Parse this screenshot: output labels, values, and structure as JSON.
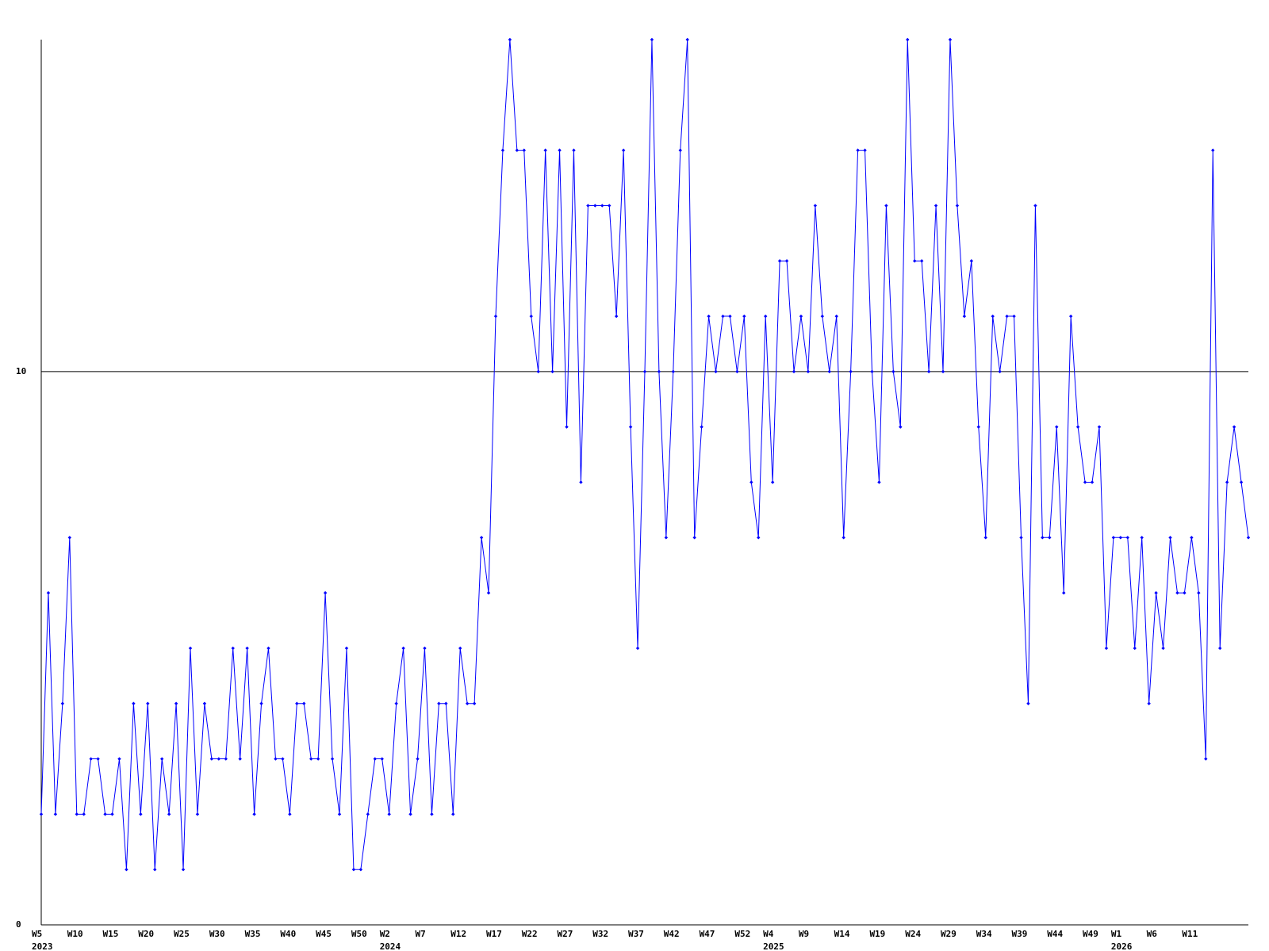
{
  "chart_data": {
    "type": "line",
    "categories": [
      "W5",
      null,
      null,
      null,
      null,
      "W10",
      null,
      null,
      null,
      null,
      "W15",
      null,
      null,
      null,
      null,
      "W20",
      null,
      null,
      null,
      null,
      "W25",
      null,
      null,
      null,
      null,
      "W30",
      null,
      null,
      null,
      null,
      "W35",
      null,
      null,
      null,
      null,
      "W40",
      null,
      null,
      null,
      null,
      "W45",
      null,
      null,
      null,
      null,
      "W50",
      null,
      null,
      null,
      "W2",
      null,
      null,
      null,
      null,
      "W7",
      null,
      null,
      null,
      null,
      "W12",
      null,
      null,
      null,
      null,
      "W17",
      null,
      null,
      null,
      null,
      "W22",
      null,
      null,
      null,
      null,
      "W27",
      null,
      null,
      null,
      null,
      "W32",
      null,
      null,
      null,
      null,
      "W37",
      null,
      null,
      null,
      null,
      "W42",
      null,
      null,
      null,
      null,
      "W47",
      null,
      null,
      null,
      null,
      "W52",
      null,
      null,
      null,
      "W4",
      null,
      null,
      null,
      null,
      "W9",
      null,
      null,
      null,
      null,
      "W14",
      null,
      null,
      null,
      null,
      "W19",
      null,
      null,
      null,
      null,
      "W24",
      null,
      null,
      null,
      null,
      "W29",
      null,
      null,
      null,
      null,
      "W34",
      null,
      null,
      null,
      null,
      "W39",
      null,
      null,
      null,
      null,
      "W44",
      null,
      null,
      null,
      null,
      "W49",
      null,
      null,
      null,
      "W1",
      null,
      null,
      null,
      null,
      "W6",
      null,
      null,
      null,
      null,
      "W11",
      null,
      null,
      null,
      null,
      null,
      null,
      null,
      null
    ],
    "years": [
      "2023",
      null,
      null,
      null,
      null,
      null,
      null,
      null,
      null,
      null,
      null,
      null,
      null,
      null,
      null,
      null,
      null,
      null,
      null,
      null,
      null,
      null,
      null,
      null,
      null,
      null,
      null,
      null,
      null,
      null,
      null,
      null,
      null,
      null,
      null,
      null,
      null,
      null,
      null,
      null,
      null,
      null,
      null,
      null,
      null,
      null,
      null,
      null,
      null,
      "2024",
      null,
      null,
      null,
      null,
      null,
      null,
      null,
      null,
      null,
      null,
      null,
      null,
      null,
      null,
      null,
      null,
      null,
      null,
      null,
      null,
      null,
      null,
      null,
      null,
      null,
      null,
      null,
      null,
      null,
      null,
      null,
      null,
      null,
      null,
      null,
      null,
      null,
      null,
      null,
      null,
      null,
      null,
      null,
      null,
      null,
      null,
      null,
      null,
      null,
      null,
      null,
      null,
      null,
      "2025",
      null,
      null,
      null,
      null,
      null,
      null,
      null,
      null,
      null,
      null,
      null,
      null,
      null,
      null,
      null,
      null,
      null,
      null,
      null,
      null,
      null,
      null,
      null,
      null,
      null,
      null,
      null,
      null,
      null,
      null,
      null,
      null,
      null,
      null,
      null,
      null,
      null,
      null,
      null,
      null,
      null,
      null,
      null,
      null,
      null,
      null,
      null,
      null,
      "2026",
      null,
      null,
      null,
      null,
      null,
      null,
      null,
      null,
      null,
      null,
      null,
      null,
      null,
      null,
      null,
      null,
      null,
      null
    ],
    "values": [
      2,
      6,
      2,
      4,
      7,
      2,
      2,
      3,
      3,
      2,
      2,
      3,
      1,
      4,
      2,
      4,
      1,
      3,
      2,
      4,
      1,
      5,
      2,
      4,
      3,
      3,
      3,
      5,
      3,
      5,
      2,
      4,
      5,
      3,
      3,
      2,
      4,
      4,
      3,
      3,
      6,
      3,
      2,
      5,
      1,
      1,
      2,
      3,
      3,
      2,
      4,
      5,
      2,
      3,
      5,
      2,
      4,
      4,
      2,
      5,
      4,
      4,
      7,
      6,
      11,
      14,
      16,
      14,
      14,
      11,
      10,
      14,
      10,
      14,
      9,
      14,
      8,
      13,
      13,
      13,
      13,
      11,
      14,
      9,
      5,
      10,
      16,
      10,
      7,
      10,
      14,
      16,
      7,
      9,
      11,
      10,
      11,
      11,
      10,
      11,
      8,
      7,
      11,
      8,
      12,
      12,
      10,
      11,
      10,
      13,
      11,
      10,
      11,
      7,
      10,
      14,
      14,
      10,
      8,
      13,
      10,
      9,
      16,
      12,
      12,
      10,
      13,
      10,
      16,
      13,
      11,
      12,
      9,
      7,
      11,
      10,
      11,
      11,
      7,
      4,
      13,
      7,
      7,
      9,
      6,
      11,
      9,
      8,
      8,
      9,
      5,
      7,
      7,
      7,
      5,
      7,
      4,
      6,
      5,
      7,
      6,
      6,
      7,
      6,
      3,
      14,
      5,
      8,
      9,
      8,
      7
    ],
    "color": "#0000ff",
    "ylim": [
      0,
      16
    ],
    "yticks": [
      0,
      10
    ],
    "grid": true
  }
}
